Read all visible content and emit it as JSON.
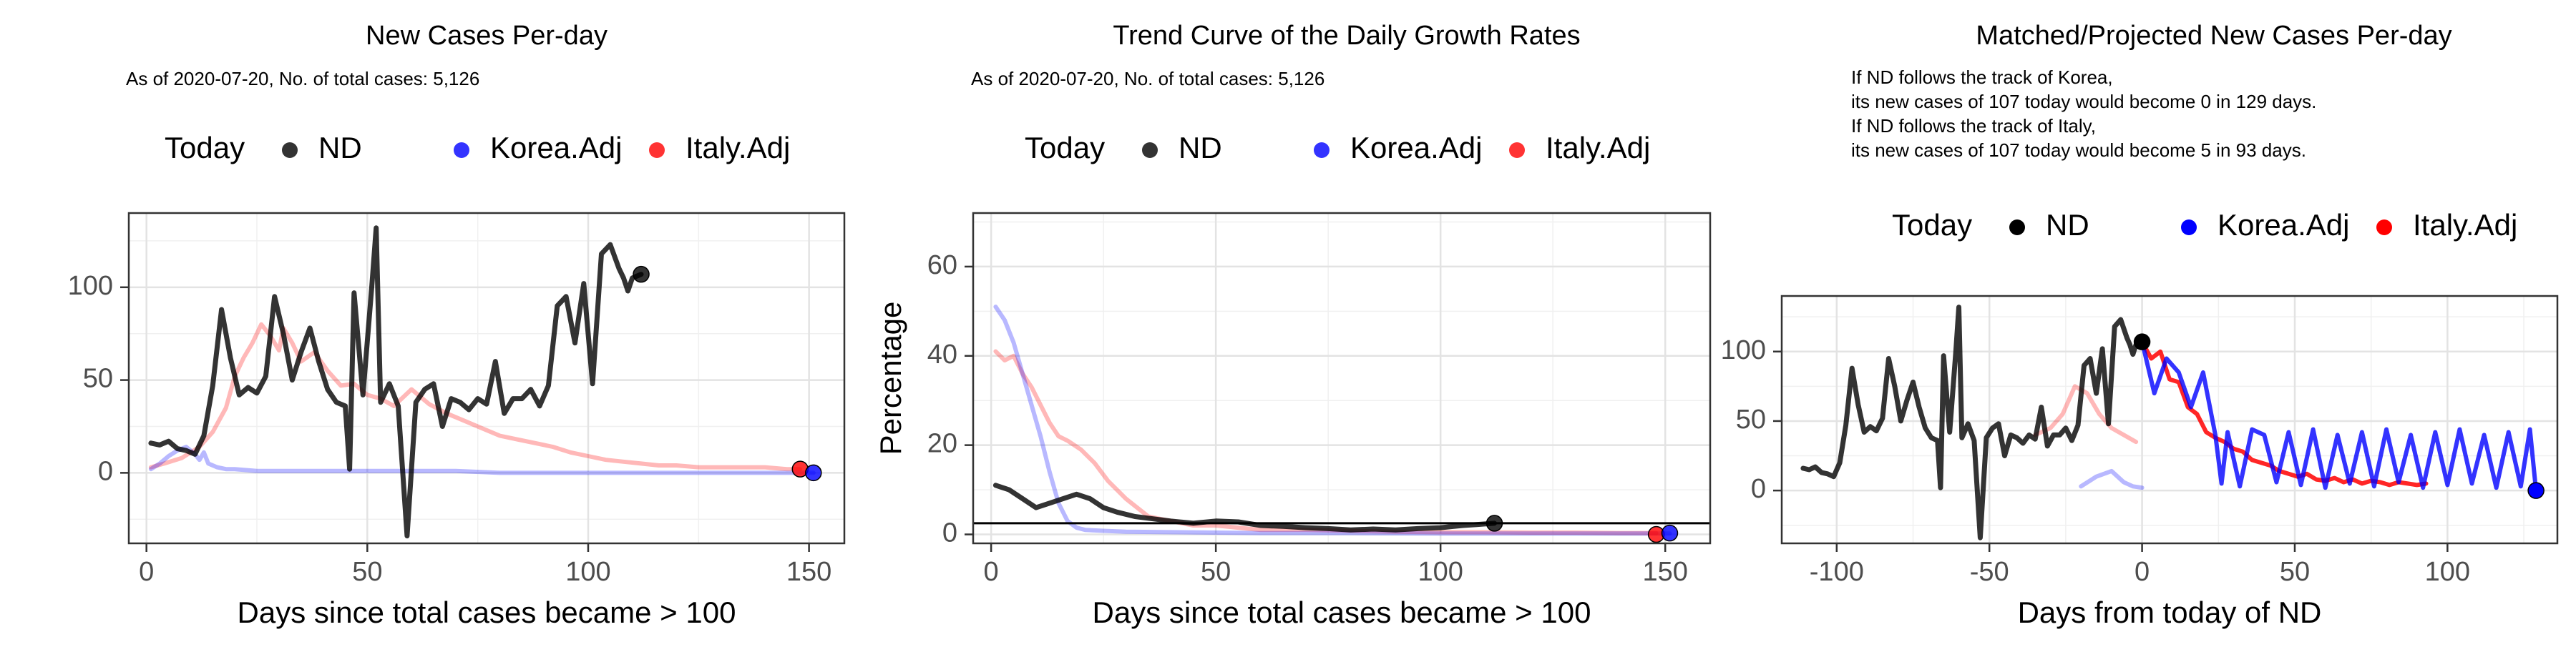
{
  "chart_data": [
    {
      "type": "line",
      "title": "New Cases Per-day",
      "subtitle_lines": [
        "As of 2020-07-20, No. of total cases: 5,126"
      ],
      "xlabel": "Days since total cases became > 100",
      "ylabel": "",
      "xlim": [
        -4,
        158
      ],
      "ylim": [
        -38,
        140
      ],
      "x_ticks": [
        0,
        50,
        100,
        150
      ],
      "y_ticks": [
        0,
        50,
        100
      ],
      "grid": true,
      "legend": {
        "placement": "top",
        "title": "Today",
        "items": [
          "ND",
          "Korea.Adj",
          "Italy.Adj"
        ]
      },
      "series": [
        {
          "name": "Italy.Adj",
          "color": "#ff0000",
          "line_opacity": 0.28,
          "x": [
            1,
            4,
            8,
            12,
            15,
            18,
            20,
            22,
            24,
            26,
            28,
            30,
            31,
            33,
            35,
            38,
            41,
            44,
            47,
            50,
            53,
            56,
            60,
            64,
            68,
            72,
            76,
            80,
            84,
            88,
            92,
            96,
            100,
            104,
            108,
            112,
            116,
            120,
            125,
            130,
            135,
            140,
            145,
            148
          ],
          "values": [
            3,
            5,
            8,
            14,
            22,
            35,
            52,
            62,
            70,
            80,
            74,
            66,
            78,
            70,
            60,
            65,
            55,
            47,
            48,
            42,
            40,
            36,
            45,
            37,
            32,
            28,
            24,
            20,
            18,
            16,
            14,
            11,
            9,
            7,
            6,
            5,
            4,
            4,
            3,
            3,
            3,
            3,
            2,
            2
          ],
          "today": {
            "x": 148,
            "value": 2
          }
        },
        {
          "name": "Korea.Adj",
          "color": "#0000ff",
          "line_opacity": 0.28,
          "x": [
            1,
            3,
            5,
            7,
            9,
            11,
            12,
            13,
            14,
            16,
            18,
            20,
            25,
            30,
            40,
            50,
            60,
            70,
            80,
            90,
            100,
            110,
            120,
            130,
            140,
            151
          ],
          "values": [
            2,
            5,
            9,
            12,
            14,
            10,
            7,
            11,
            5,
            3,
            2,
            2,
            1,
            1,
            1,
            1,
            1,
            1,
            0,
            0,
            0,
            0,
            0,
            0,
            0,
            0
          ],
          "today": {
            "x": 151,
            "value": 0
          }
        },
        {
          "name": "ND",
          "color": "#000000",
          "line_opacity": 0.8,
          "x": [
            1,
            3,
            5,
            7,
            9,
            11,
            13,
            15,
            17,
            19,
            21,
            23,
            25,
            27,
            29,
            31,
            33,
            35,
            37,
            39,
            41,
            43,
            45,
            46,
            47,
            49,
            51,
            52,
            53,
            55,
            57,
            59,
            61,
            63,
            65,
            67,
            69,
            71,
            73,
            75,
            77,
            79,
            81,
            83,
            85,
            87,
            89,
            91,
            93,
            95,
            97,
            99,
            101,
            103,
            105,
            107,
            108,
            109,
            110,
            112
          ],
          "values": [
            16,
            15,
            17,
            13,
            12,
            10,
            20,
            47,
            88,
            62,
            42,
            46,
            43,
            52,
            95,
            75,
            50,
            65,
            78,
            60,
            45,
            38,
            36,
            2,
            97,
            42,
            100,
            132,
            38,
            48,
            36,
            -34,
            38,
            45,
            48,
            25,
            40,
            38,
            34,
            40,
            37,
            60,
            32,
            40,
            40,
            45,
            36,
            47,
            90,
            95,
            70,
            102,
            48,
            118,
            123,
            110,
            105,
            98,
            105,
            107
          ],
          "today": {
            "x": 112,
            "value": 107
          }
        }
      ]
    },
    {
      "type": "line",
      "title": "Trend Curve of the Daily Growth Rates",
      "subtitle_lines": [
        "As of 2020-07-20, No. of total cases: 5,126"
      ],
      "xlabel": "Days since total cases became > 100",
      "ylabel": "Percentage",
      "xlim": [
        -4,
        160
      ],
      "ylim": [
        -2,
        72
      ],
      "x_ticks": [
        0,
        50,
        100,
        150
      ],
      "y_ticks": [
        0,
        20,
        40,
        60
      ],
      "grid": true,
      "hline": 2.5,
      "legend": {
        "placement": "top",
        "title": "Today",
        "items": [
          "ND",
          "Korea.Adj",
          "Italy.Adj"
        ]
      },
      "series": [
        {
          "name": "Italy.Adj",
          "color": "#ff0000",
          "line_opacity": 0.28,
          "x": [
            1,
            3,
            5,
            7,
            9,
            11,
            13,
            15,
            17,
            20,
            23,
            26,
            30,
            35,
            40,
            45,
            50,
            55,
            60,
            70,
            80,
            90,
            100,
            110,
            120,
            130,
            140,
            148
          ],
          "values": [
            41,
            39,
            40,
            36,
            33,
            29,
            25,
            22,
            21,
            19,
            16,
            12,
            8,
            4,
            3,
            2,
            2,
            1.5,
            1,
            1,
            0.8,
            0.6,
            0.5,
            0.5,
            0.4,
            0.4,
            0.3,
            0.3
          ],
          "today": {
            "x": 148,
            "value": 0
          }
        },
        {
          "name": "Korea.Adj",
          "color": "#0000ff",
          "line_opacity": 0.28,
          "x": [
            1,
            3,
            5,
            7,
            9,
            11,
            13,
            15,
            17,
            19,
            21,
            25,
            30,
            40,
            50,
            60,
            80,
            100,
            120,
            140,
            151
          ],
          "values": [
            51,
            48,
            43,
            36,
            29,
            22,
            14,
            7,
            3,
            1.5,
            1,
            0.8,
            0.6,
            0.5,
            0.4,
            0.3,
            0.3,
            0.2,
            0.2,
            0.2,
            0.2
          ],
          "today": {
            "x": 151,
            "value": 0.3
          }
        },
        {
          "name": "ND",
          "color": "#000000",
          "line_opacity": 0.8,
          "x": [
            1,
            4,
            7,
            10,
            13,
            16,
            19,
            22,
            25,
            28,
            32,
            36,
            40,
            45,
            50,
            55,
            60,
            65,
            70,
            75,
            80,
            85,
            90,
            95,
            100,
            105,
            108,
            112
          ],
          "values": [
            11,
            10,
            8,
            6,
            7,
            8,
            9,
            8,
            6,
            5,
            4,
            3.5,
            3,
            2.5,
            3,
            2.8,
            2,
            1.8,
            1.5,
            1.3,
            1,
            1.2,
            1,
            1.3,
            1.5,
            2,
            2.2,
            2.5
          ],
          "today": {
            "x": 112,
            "value": 2.5
          }
        }
      ]
    },
    {
      "type": "line",
      "title": "Matched/Projected New Cases Per-day",
      "subtitle_lines": [
        "If ND follows the track of Korea,",
        "its new cases of 107 today would become 0 in 129 days.",
        "If ND follows the track of Italy,",
        "its new cases of 107 today would become 5 in 93 days."
      ],
      "xlabel": "Days from today of ND",
      "ylabel": "",
      "xlim": [
        -118,
        136
      ],
      "ylim": [
        -38,
        140
      ],
      "x_ticks": [
        -100,
        -50,
        0,
        50,
        100
      ],
      "y_ticks": [
        0,
        50,
        100
      ],
      "grid": true,
      "legend": {
        "placement": "top",
        "title": "Today",
        "items": [
          "ND",
          "Korea.Adj",
          "Italy.Adj"
        ]
      },
      "series": [
        {
          "name": "Italy.Adj",
          "color": "#ff0000",
          "line_opacity": 0.28,
          "x": [
            -35,
            -30,
            -26,
            -22,
            -18,
            -14,
            -10,
            -6,
            -2
          ],
          "values": [
            40,
            45,
            55,
            75,
            70,
            55,
            45,
            40,
            35
          ]
        },
        {
          "name": "Korea.Adj",
          "color": "#0000ff",
          "line_opacity": 0.28,
          "x": [
            -20,
            -15,
            -10,
            -6,
            -3,
            0
          ],
          "values": [
            3,
            10,
            14,
            6,
            3,
            2
          ]
        },
        {
          "name": "ND",
          "color": "#000000",
          "line_opacity": 0.8,
          "x": [
            -111,
            -109,
            -107,
            -105,
            -103,
            -101,
            -99,
            -97,
            -95,
            -93,
            -91,
            -89,
            -87,
            -85,
            -83,
            -81,
            -79,
            -77,
            -75,
            -73,
            -71,
            -69,
            -67,
            -66,
            -65,
            -63,
            -61,
            -60,
            -59,
            -57,
            -55,
            -53,
            -51,
            -49,
            -47,
            -45,
            -43,
            -41,
            -39,
            -37,
            -35,
            -33,
            -31,
            -29,
            -27,
            -25,
            -23,
            -21,
            -19,
            -17,
            -15,
            -13,
            -11,
            -9,
            -7,
            -5,
            -4,
            -3,
            -2,
            0
          ],
          "values": [
            16,
            15,
            17,
            13,
            12,
            10,
            20,
            47,
            88,
            62,
            42,
            46,
            43,
            52,
            95,
            75,
            50,
            65,
            78,
            60,
            45,
            38,
            36,
            2,
            97,
            42,
            100,
            132,
            38,
            48,
            36,
            -34,
            38,
            45,
            48,
            25,
            40,
            38,
            34,
            40,
            37,
            60,
            32,
            40,
            40,
            45,
            36,
            47,
            90,
            95,
            70,
            102,
            48,
            118,
            123,
            110,
            105,
            98,
            105,
            107
          ],
          "today": {
            "x": 0,
            "value": 107
          }
        },
        {
          "name": "Italy.Adj",
          "color": "#ff0000",
          "line_opacity": 0.85,
          "role": "projection",
          "x": [
            0,
            3,
            6,
            9,
            12,
            15,
            18,
            21,
            24,
            27,
            30,
            33,
            36,
            39,
            42,
            45,
            48,
            51,
            54,
            57,
            60,
            63,
            66,
            69,
            72,
            75,
            78,
            81,
            84,
            87,
            90,
            93
          ],
          "values": [
            107,
            95,
            100,
            80,
            78,
            60,
            55,
            42,
            38,
            35,
            30,
            28,
            22,
            20,
            18,
            14,
            12,
            10,
            12,
            8,
            7,
            9,
            6,
            8,
            5,
            7,
            6,
            4,
            6,
            5,
            4,
            5
          ]
        },
        {
          "name": "Korea.Adj",
          "color": "#0000ff",
          "line_opacity": 0.8,
          "role": "projection",
          "pattern": "oscillating",
          "x": [
            0,
            4,
            8,
            12,
            16,
            20,
            24,
            26,
            28,
            32,
            36,
            40,
            44,
            48,
            52,
            56,
            60,
            64,
            68,
            72,
            76,
            80,
            84,
            88,
            92,
            96,
            100,
            104,
            108,
            112,
            116,
            120,
            124,
            127,
            129
          ],
          "values": [
            107,
            70,
            95,
            85,
            60,
            85,
            40,
            5,
            42,
            3,
            44,
            40,
            6,
            42,
            4,
            44,
            2,
            40,
            5,
            42,
            3,
            44,
            6,
            40,
            2,
            42,
            4,
            44,
            5,
            40,
            2,
            42,
            3,
            44,
            0
          ],
          "today": {
            "x": 129,
            "value": 0
          }
        }
      ]
    }
  ]
}
